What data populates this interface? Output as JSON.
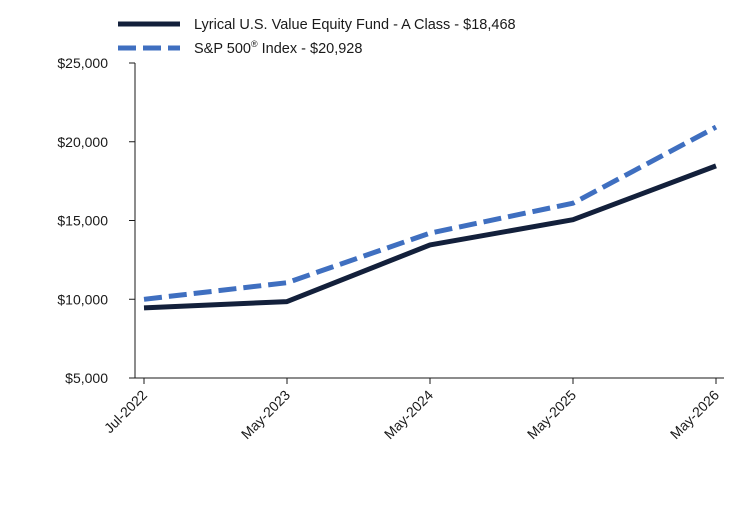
{
  "chart_data": {
    "type": "line",
    "title": "",
    "xlabel": "",
    "ylabel": "",
    "categories": [
      "Jul-2022",
      "May-2023",
      "May-2024",
      "May-2025",
      "May-2026"
    ],
    "ylim": [
      5000,
      25000
    ],
    "yticks": [
      5000,
      10000,
      15000,
      20000,
      25000
    ],
    "ytick_labels": [
      "$5,000",
      "$10,000",
      "$15,000",
      "$20,000",
      "$25,000"
    ],
    "grid": false,
    "legend_position": "top",
    "series": [
      {
        "name": "Lyrical U.S. Value Equity Fund - A Class - $18,468",
        "values": [
          9450,
          9850,
          13450,
          15050,
          18468
        ],
        "color": "#13203b",
        "style": "solid"
      },
      {
        "name": "S&P 500",
        "name_sup": "®",
        "name_suffix": " Index - $20,928",
        "values": [
          10000,
          11050,
          14200,
          16100,
          20928
        ],
        "color": "#3f6fc0",
        "style": "dashed"
      }
    ]
  }
}
